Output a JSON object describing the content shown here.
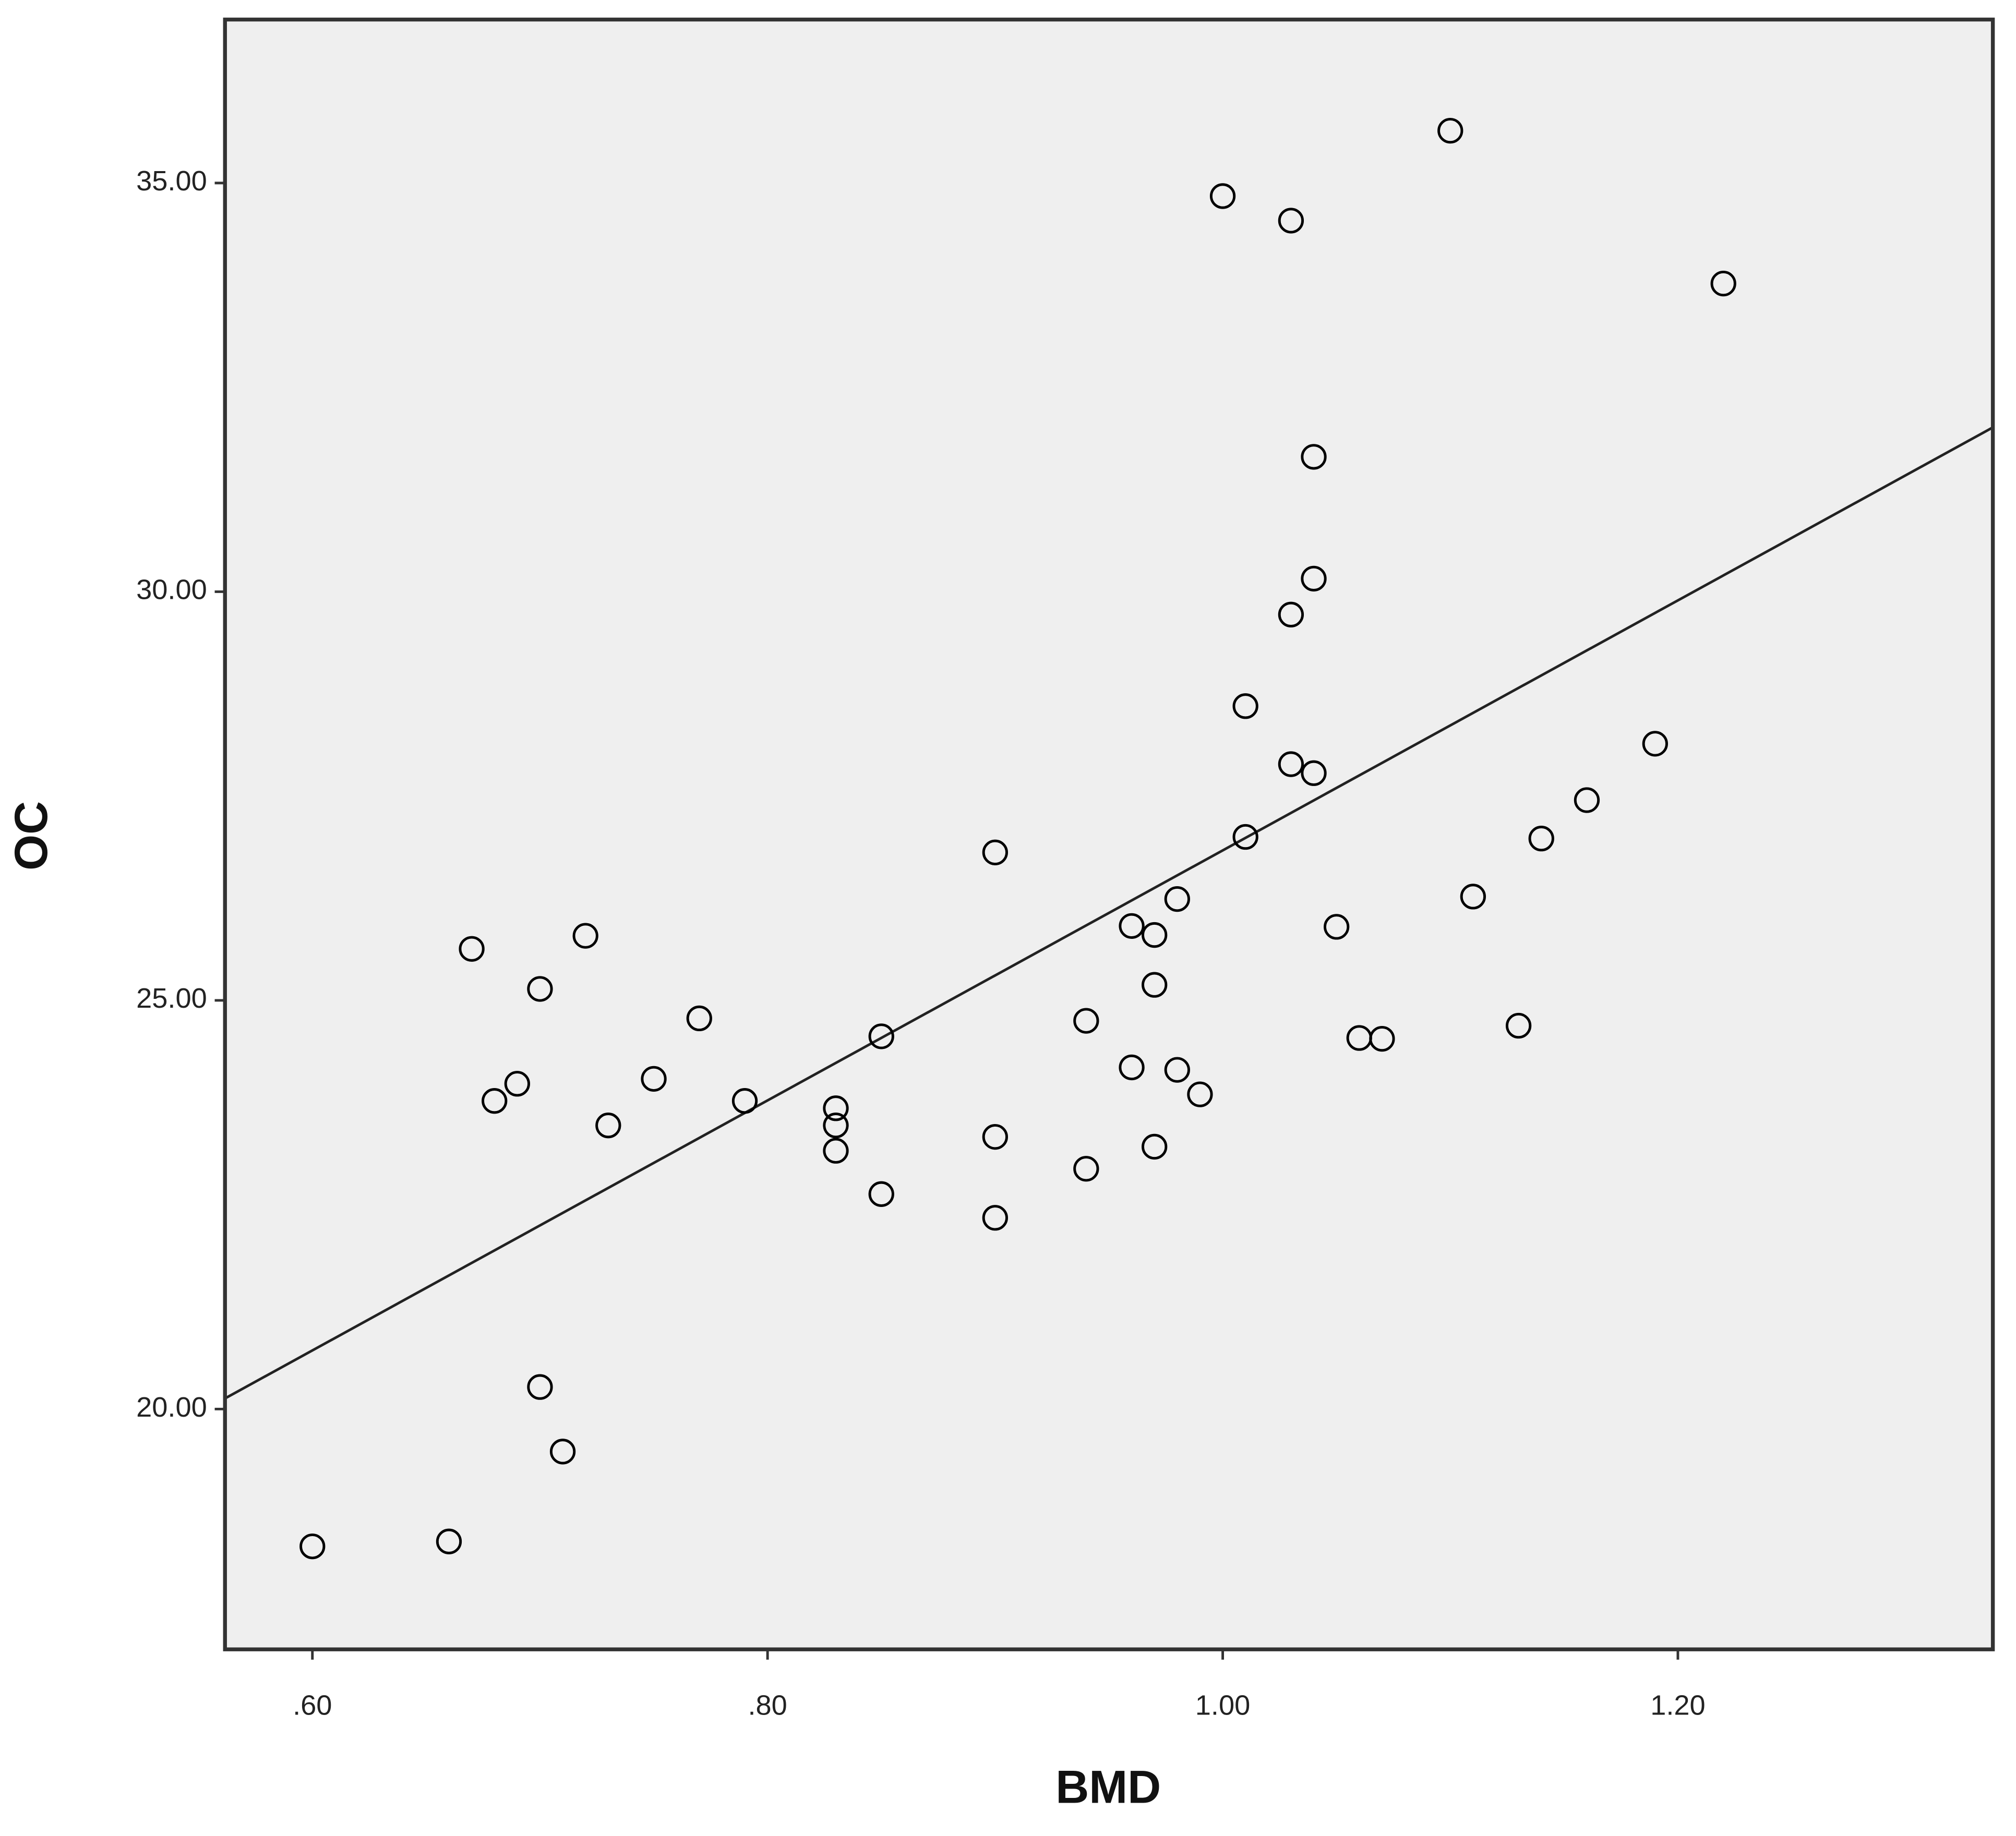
{
  "chart_data": {
    "type": "scatter",
    "x_label": "BMD",
    "y_label": "OC",
    "xlim": [
      0.5616,
      1.3384
    ],
    "ylim": [
      17.06,
      37.0
    ],
    "xticks": [
      {
        "value": 0.6,
        "label": ".60"
      },
      {
        "value": 0.8,
        "label": ".80"
      },
      {
        "value": 1.0,
        "label": "1.00"
      },
      {
        "value": 1.2,
        "label": "1.20"
      }
    ],
    "yticks": [
      {
        "value": 20,
        "label": "20.00"
      },
      {
        "value": 25,
        "label": "25.00"
      },
      {
        "value": 30,
        "label": "30.00"
      },
      {
        "value": 35,
        "label": "35.00"
      }
    ],
    "color": "#000000",
    "background": "#efefef",
    "x": [
      1.1,
      1.0,
      1.03,
      1.22,
      1.04,
      1.04,
      1.03,
      1.01,
      1.19,
      1.03,
      1.04,
      1.16,
      0.9,
      1.01,
      1.14,
      1.11,
      0.98,
      0.96,
      1.05,
      0.97,
      0.72,
      0.67,
      0.7,
      0.97,
      0.77,
      0.94,
      1.13,
      0.85,
      1.06,
      1.07,
      0.96,
      0.98,
      0.75,
      0.69,
      0.68,
      0.79,
      0.99,
      0.83,
      0.83,
      0.73,
      0.9,
      0.83,
      0.97,
      0.94,
      0.85,
      0.9,
      0.7,
      0.71,
      0.66,
      0.6
    ],
    "values": [
      35.64,
      34.84,
      34.54,
      33.77,
      31.65,
      30.16,
      29.72,
      28.6,
      28.14,
      27.89,
      27.78,
      27.45,
      26.81,
      27.0,
      26.98,
      26.27,
      26.24,
      25.91,
      25.9,
      25.8,
      25.79,
      25.63,
      25.14,
      25.19,
      24.78,
      24.75,
      24.69,
      24.56,
      24.54,
      24.53,
      24.18,
      24.15,
      24.04,
      23.98,
      23.77,
      23.77,
      23.85,
      23.68,
      23.47,
      23.47,
      23.33,
      23.16,
      23.21,
      22.94,
      22.63,
      22.34,
      20.27,
      19.48,
      18.38,
      18.32
    ],
    "fit_line": {
      "x": [
        0.5616,
        1.3384
      ],
      "values": [
        20.13,
        32.01
      ]
    }
  }
}
